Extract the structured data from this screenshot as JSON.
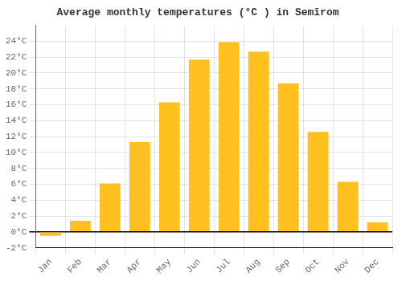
{
  "chart_data": {
    "type": "bar",
    "title": "Average monthly temperatures (°C ) in Semīrom",
    "categories": [
      "Jan",
      "Feb",
      "Mar",
      "Apr",
      "May",
      "Jun",
      "Jul",
      "Aug",
      "Sep",
      "Oct",
      "Nov",
      "Dec"
    ],
    "values": [
      -0.5,
      1.4,
      6.1,
      11.3,
      16.3,
      21.7,
      23.9,
      22.7,
      18.7,
      12.6,
      6.3,
      1.2
    ],
    "color": "#FFC020",
    "ylim": [
      -2,
      26
    ],
    "yticks": [
      {
        "value": -2,
        "label": "-2°C"
      },
      {
        "value": 0,
        "label": "0°C"
      },
      {
        "value": 2,
        "label": "2°C"
      },
      {
        "value": 4,
        "label": "4°C"
      },
      {
        "value": 6,
        "label": "6°C"
      },
      {
        "value": 8,
        "label": "8°C"
      },
      {
        "value": 10,
        "label": "10°C"
      },
      {
        "value": 12,
        "label": "12°C"
      },
      {
        "value": 14,
        "label": "14°C"
      },
      {
        "value": 16,
        "label": "16°C"
      },
      {
        "value": 18,
        "label": "18°C"
      },
      {
        "value": 20,
        "label": "20°C"
      },
      {
        "value": 22,
        "label": "22°C"
      },
      {
        "value": 24,
        "label": "24°C"
      }
    ],
    "grid": true
  }
}
